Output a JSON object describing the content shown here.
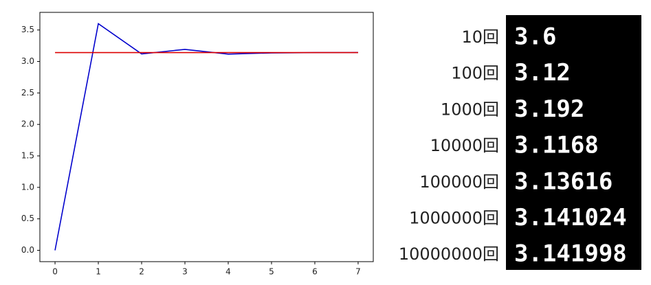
{
  "chart_data": {
    "type": "line",
    "x": [
      0,
      1,
      2,
      3,
      4,
      5,
      6,
      7
    ],
    "series": [
      {
        "color": "#0000cc",
        "values": [
          0,
          3.6,
          3.12,
          3.192,
          3.1168,
          3.13616,
          3.141024,
          3.141998
        ]
      },
      {
        "color": "#dd0000",
        "values": [
          3.1416,
          3.1416,
          3.1416,
          3.1416,
          3.1416,
          3.1416,
          3.1416,
          3.1416
        ]
      }
    ],
    "xlim": [
      -0.35,
      7.35
    ],
    "xticks": [
      0,
      1,
      2,
      3,
      4,
      5,
      6,
      7
    ],
    "ylim": [
      -0.18,
      3.78
    ],
    "yticks": [
      {
        "value": 0,
        "label": "0.0"
      },
      {
        "value": 0.5,
        "label": "0.5"
      },
      {
        "value": 1,
        "label": "1.0"
      },
      {
        "value": 1.5,
        "label": "1.5"
      },
      {
        "value": 2,
        "label": "2.0"
      },
      {
        "value": 2.5,
        "label": "2.5"
      },
      {
        "value": 3,
        "label": "3.0"
      },
      {
        "value": 3.5,
        "label": "3.5"
      }
    ],
    "grid": false
  },
  "results": {
    "rows": [
      {
        "label": "10回",
        "value": 3.6
      },
      {
        "label": "100回",
        "value": 3.12
      },
      {
        "label": "1000回",
        "value": 3.192
      },
      {
        "label": "10000回",
        "value": 3.1168
      },
      {
        "label": "100000回",
        "value": 3.13616
      },
      {
        "label": "1000000回",
        "value": 3.141024
      },
      {
        "label": "10000000回",
        "value": 3.141998
      }
    ]
  }
}
